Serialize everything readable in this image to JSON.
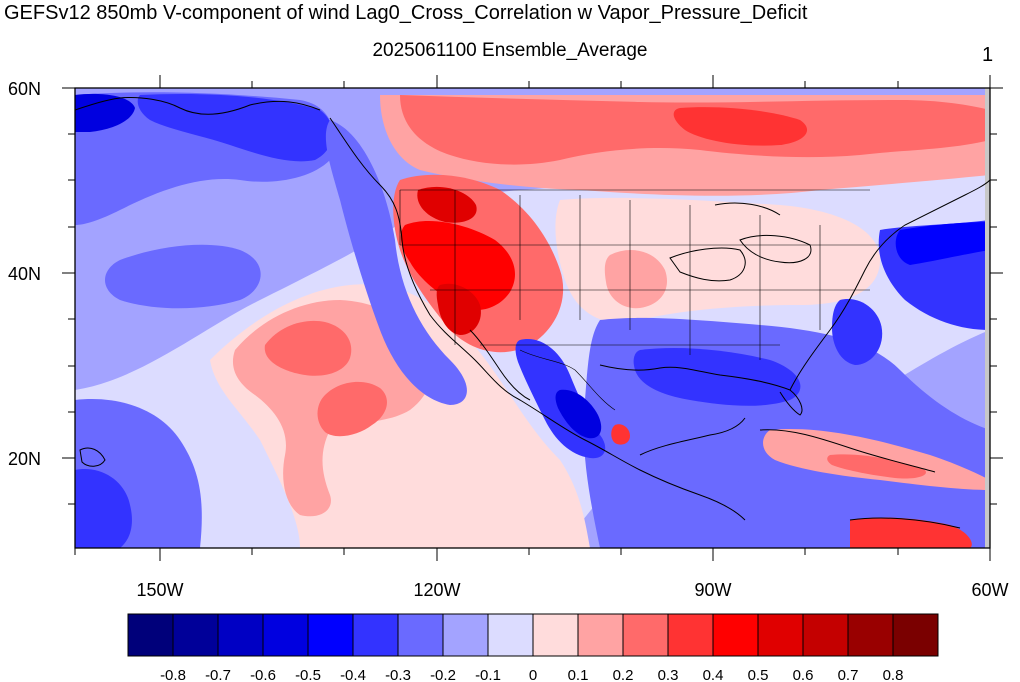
{
  "title": "GEFSv12 850mb V-component of wind Lag0_Cross_Correlation w Vapor_Pressure_Deficit",
  "subtitle": "2025061100 Ensemble_Average",
  "panel_number": "1",
  "map": {
    "lat_labels": [
      "60N",
      "40N",
      "20N"
    ],
    "lon_labels": [
      "150W",
      "120W",
      "90W",
      "60W"
    ],
    "colors": {
      "-0.8": "#00007a",
      "-0.7": "#000099",
      "-0.6": "#0000c4",
      "-0.5": "#0000e0",
      "-0.4": "#0000ff",
      "-0.3": "#3333ff",
      "-0.2": "#6a6aff",
      "-0.1": "#a3a3ff",
      "0": "#dcdcff",
      "0.1": "#ffdcdc",
      "0.2": "#ffa3a3",
      "0.3": "#ff6a6a",
      "0.4": "#ff3333",
      "0.5": "#ff0000",
      "0.6": "#e00000",
      "0.7": "#c40000",
      "0.8": "#990000",
      "0.9": "#7a0000"
    }
  },
  "colorbar": {
    "labels": [
      "-0.8",
      "-0.7",
      "-0.6",
      "-0.5",
      "-0.4",
      "-0.3",
      "-0.2",
      "-0.1",
      "0",
      "0.1",
      "0.2",
      "0.3",
      "0.4",
      "0.5",
      "0.6",
      "0.7",
      "0.8"
    ],
    "colors": [
      "#00007a",
      "#000099",
      "#0000c4",
      "#0000e0",
      "#0000ff",
      "#3333ff",
      "#6a6aff",
      "#a3a3ff",
      "#dcdcff",
      "#ffdcdc",
      "#ffa3a3",
      "#ff6a6a",
      "#ff3333",
      "#ff0000",
      "#e00000",
      "#c40000",
      "#990000",
      "#7a0000"
    ]
  }
}
